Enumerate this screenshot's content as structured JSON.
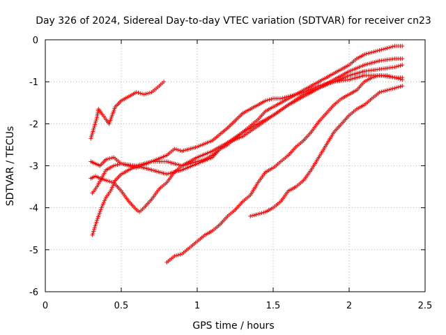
{
  "chart_data": {
    "type": "scatter",
    "title": "Day 326 of 2024, Sidereal Day-to-day VTEC variation (SDTVAR) for receiver cn23",
    "xlabel": "GPS time / hours",
    "ylabel": "SDTVAR / TECUs",
    "xlim": [
      0,
      2.5
    ],
    "ylim": [
      -6,
      0
    ],
    "xticks": [
      0,
      0.5,
      1,
      1.5,
      2,
      2.5
    ],
    "xtick_labels": [
      "0",
      "0.5",
      "1",
      "1.5",
      "2",
      "2.5"
    ],
    "yticks": [
      -6,
      -5,
      -4,
      -3,
      -2,
      -1,
      0
    ],
    "ytick_labels": [
      "-6",
      "-5",
      "-4",
      "-3",
      "-2",
      "-1",
      "0"
    ],
    "grid": true,
    "marker": "plus",
    "series_color": "#ff0000",
    "series": [
      {
        "x": [
          0.3,
          0.32,
          0.34,
          0.35,
          0.37,
          0.4,
          0.42,
          0.44,
          0.46,
          0.5,
          0.55,
          0.6,
          0.65,
          0.7,
          0.75,
          0.78
        ],
        "y": [
          -2.35,
          -2.1,
          -1.85,
          -1.65,
          -1.75,
          -1.9,
          -2.0,
          -1.8,
          -1.6,
          -1.45,
          -1.35,
          -1.25,
          -1.3,
          -1.25,
          -1.1,
          -1.0
        ]
      },
      {
        "x": [
          0.3,
          0.33,
          0.36,
          0.4,
          0.45,
          0.5,
          0.55,
          0.6,
          0.7,
          0.8,
          0.9,
          1.0,
          1.05,
          1.1,
          1.15,
          1.2,
          1.3,
          1.4,
          1.5,
          1.6,
          1.7,
          1.8,
          1.9,
          2.0,
          2.1,
          2.2,
          2.3,
          2.35
        ],
        "y": [
          -2.9,
          -2.95,
          -3.0,
          -2.85,
          -2.8,
          -2.95,
          -3.0,
          -3.05,
          -2.9,
          -2.9,
          -3.0,
          -2.9,
          -2.85,
          -2.75,
          -2.6,
          -2.45,
          -2.2,
          -2.0,
          -1.8,
          -1.55,
          -1.3,
          -1.15,
          -0.95,
          -0.75,
          -0.6,
          -0.5,
          -0.45,
          -0.45
        ]
      },
      {
        "x": [
          0.3,
          0.33,
          0.36,
          0.4,
          0.45,
          0.5,
          0.55,
          0.6,
          0.62,
          0.65,
          0.7,
          0.75,
          0.8,
          0.85,
          0.9,
          1.0,
          1.1,
          1.2,
          1.3,
          1.4,
          1.5,
          1.6,
          1.7,
          1.8,
          1.9,
          2.0,
          2.1,
          2.2,
          2.3,
          2.35
        ],
        "y": [
          -3.3,
          -3.25,
          -3.3,
          -3.35,
          -3.4,
          -3.6,
          -3.85,
          -4.05,
          -4.1,
          -4.0,
          -3.8,
          -3.55,
          -3.4,
          -3.15,
          -3.0,
          -2.8,
          -2.65,
          -2.45,
          -2.3,
          -2.05,
          -1.8,
          -1.55,
          -1.35,
          -1.15,
          -1.0,
          -0.85,
          -0.75,
          -0.7,
          -0.65,
          -0.6
        ]
      },
      {
        "x": [
          0.31,
          0.34,
          0.37,
          0.4,
          0.43,
          0.46,
          0.5,
          0.55,
          0.6,
          0.7,
          0.8,
          0.85,
          0.9,
          1.0,
          1.1,
          1.2,
          1.3,
          1.4,
          1.45,
          1.5,
          1.55,
          1.6,
          1.65,
          1.7,
          1.8,
          1.9,
          2.0,
          2.1,
          2.2,
          2.3,
          2.35
        ],
        "y": [
          -4.65,
          -4.3,
          -4.0,
          -3.75,
          -3.6,
          -3.35,
          -3.2,
          -3.1,
          -3.0,
          -2.9,
          -2.75,
          -2.6,
          -2.65,
          -2.55,
          -2.4,
          -2.1,
          -1.75,
          -1.55,
          -1.45,
          -1.4,
          -1.4,
          -1.35,
          -1.3,
          -1.25,
          -1.1,
          -1.0,
          -0.95,
          -0.85,
          -0.85,
          -0.9,
          -0.95
        ]
      },
      {
        "x": [
          0.31,
          0.34,
          0.37,
          0.4,
          0.45,
          0.5,
          0.6,
          0.7,
          0.8,
          0.9,
          1.0,
          1.1,
          1.15,
          1.2,
          1.25,
          1.3,
          1.35,
          1.4,
          1.45,
          1.5,
          1.55,
          1.6,
          1.7,
          1.8,
          1.9,
          2.0,
          2.05,
          2.1,
          2.15,
          2.2,
          2.25,
          2.3,
          2.35
        ],
        "y": [
          -3.65,
          -3.5,
          -3.3,
          -3.1,
          -3.0,
          -2.95,
          -3.0,
          -3.1,
          -3.2,
          -3.1,
          -2.95,
          -2.8,
          -2.6,
          -2.5,
          -2.35,
          -2.2,
          -2.05,
          -1.9,
          -1.7,
          -1.6,
          -1.5,
          -1.4,
          -1.2,
          -1.0,
          -0.8,
          -0.6,
          -0.45,
          -0.35,
          -0.3,
          -0.25,
          -0.2,
          -0.15,
          -0.15
        ]
      },
      {
        "x": [
          0.8,
          0.85,
          0.9,
          0.95,
          1.0,
          1.05,
          1.1,
          1.15,
          1.2,
          1.25,
          1.3,
          1.35,
          1.4,
          1.45,
          1.5,
          1.55,
          1.6,
          1.65,
          1.7,
          1.75,
          1.8,
          1.85,
          1.9,
          1.95,
          2.0,
          2.05,
          2.1,
          2.15,
          2.2,
          2.25,
          2.3,
          2.35
        ],
        "y": [
          -5.3,
          -5.15,
          -5.1,
          -4.95,
          -4.8,
          -4.65,
          -4.55,
          -4.4,
          -4.2,
          -4.05,
          -3.85,
          -3.7,
          -3.4,
          -3.15,
          -3.05,
          -2.9,
          -2.75,
          -2.55,
          -2.4,
          -2.2,
          -1.95,
          -1.75,
          -1.55,
          -1.4,
          -1.3,
          -1.2,
          -1.0,
          -0.9,
          -0.85,
          -0.85,
          -0.9,
          -0.9
        ]
      },
      {
        "x": [
          1.35,
          1.4,
          1.45,
          1.5,
          1.55,
          1.6,
          1.65,
          1.7,
          1.75,
          1.8,
          1.85,
          1.9,
          1.95,
          2.0,
          2.05,
          2.1,
          2.15,
          2.2,
          2.25,
          2.3,
          2.35
        ],
        "y": [
          -4.2,
          -4.15,
          -4.1,
          -4.0,
          -3.85,
          -3.6,
          -3.5,
          -3.35,
          -3.1,
          -2.8,
          -2.5,
          -2.2,
          -2.0,
          -1.8,
          -1.65,
          -1.55,
          -1.4,
          -1.25,
          -1.2,
          -1.15,
          -1.1
        ]
      }
    ]
  }
}
